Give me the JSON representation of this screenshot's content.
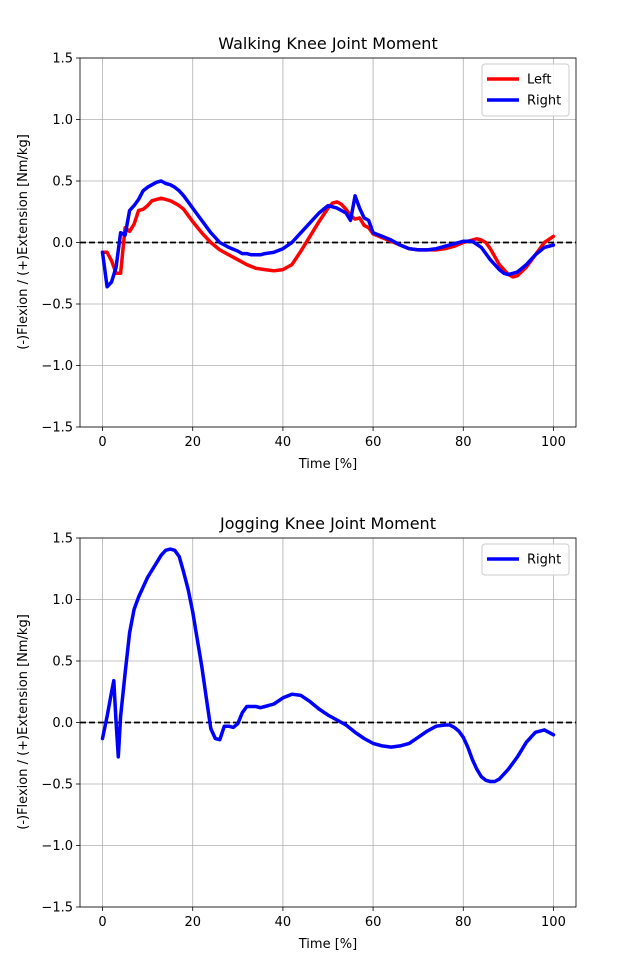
{
  "chart_data": [
    {
      "type": "line",
      "title": "Walking Knee Joint Moment",
      "xlabel": "Time [%]",
      "ylabel": "(-)Flexion / (+)Extension [Nm/kg]",
      "xlim": [
        -5,
        105
      ],
      "ylim": [
        -1.5,
        1.5
      ],
      "xticks": [
        0,
        20,
        40,
        60,
        80,
        100
      ],
      "yticks": [
        -1.5,
        -1.0,
        -0.5,
        0.0,
        0.5,
        1.0,
        1.5
      ],
      "ytick_labels": [
        "−1.5",
        "−1.0",
        "−0.5",
        "0.0",
        "0.5",
        "1.0",
        "1.5"
      ],
      "grid": true,
      "legend": "top-right",
      "zero_line": true,
      "series": [
        {
          "name": "Left",
          "color": "#ff0000",
          "x": [
            0,
            1,
            2,
            3,
            4,
            5,
            6,
            7,
            8,
            9,
            10,
            11,
            12,
            13,
            14,
            15,
            16,
            17,
            18,
            20,
            22,
            24,
            26,
            28,
            30,
            32,
            34,
            36,
            38,
            40,
            42,
            44,
            46,
            48,
            50,
            51,
            52,
            53,
            54,
            55,
            56,
            57,
            58,
            59,
            60,
            62,
            64,
            66,
            68,
            70,
            72,
            74,
            76,
            78,
            80,
            82,
            83,
            84,
            85,
            86,
            88,
            90,
            91,
            92,
            94,
            96,
            98,
            100
          ],
          "y": [
            -0.08,
            -0.08,
            -0.15,
            -0.25,
            -0.25,
            0.12,
            0.09,
            0.15,
            0.26,
            0.27,
            0.3,
            0.34,
            0.35,
            0.36,
            0.35,
            0.34,
            0.32,
            0.3,
            0.27,
            0.17,
            0.08,
            0.0,
            -0.06,
            -0.1,
            -0.14,
            -0.18,
            -0.21,
            -0.22,
            -0.23,
            -0.22,
            -0.18,
            -0.07,
            0.05,
            0.17,
            0.28,
            0.32,
            0.33,
            0.31,
            0.27,
            0.22,
            0.19,
            0.2,
            0.14,
            0.12,
            0.07,
            0.04,
            0.01,
            -0.02,
            -0.05,
            -0.06,
            -0.06,
            -0.06,
            -0.05,
            -0.03,
            0.0,
            0.02,
            0.03,
            0.02,
            0.0,
            -0.05,
            -0.18,
            -0.26,
            -0.28,
            -0.27,
            -0.2,
            -0.1,
            0.0,
            0.05
          ]
        },
        {
          "name": "Right",
          "color": "#0000ff",
          "x": [
            0,
            1,
            2,
            3,
            4,
            5,
            6,
            7,
            8,
            9,
            10,
            11,
            12,
            13,
            14,
            15,
            16,
            17,
            18,
            20,
            22,
            24,
            26,
            28,
            30,
            31,
            32,
            33,
            34,
            35,
            36,
            38,
            40,
            42,
            44,
            46,
            48,
            50,
            52,
            54,
            55,
            56,
            57,
            58,
            59,
            60,
            62,
            64,
            66,
            68,
            70,
            72,
            74,
            76,
            78,
            80,
            82,
            84,
            86,
            88,
            89,
            90,
            91,
            92,
            94,
            96,
            98,
            100
          ],
          "y": [
            -0.08,
            -0.36,
            -0.32,
            -0.2,
            0.08,
            0.06,
            0.26,
            0.3,
            0.35,
            0.42,
            0.45,
            0.47,
            0.49,
            0.5,
            0.48,
            0.47,
            0.45,
            0.42,
            0.38,
            0.28,
            0.18,
            0.08,
            0.0,
            -0.04,
            -0.07,
            -0.09,
            -0.09,
            -0.1,
            -0.1,
            -0.1,
            -0.09,
            -0.08,
            -0.05,
            0.0,
            0.08,
            0.16,
            0.24,
            0.3,
            0.28,
            0.24,
            0.18,
            0.38,
            0.28,
            0.2,
            0.18,
            0.08,
            0.05,
            0.02,
            -0.02,
            -0.05,
            -0.06,
            -0.06,
            -0.05,
            -0.03,
            -0.01,
            0.01,
            0.01,
            -0.04,
            -0.14,
            -0.22,
            -0.25,
            -0.26,
            -0.25,
            -0.24,
            -0.18,
            -0.1,
            -0.04,
            -0.02
          ]
        }
      ]
    },
    {
      "type": "line",
      "title": "Jogging Knee Joint Moment",
      "xlabel": "Time [%]",
      "ylabel": "(-)Flexion / (+)Extension [Nm/kg]",
      "xlim": [
        -5,
        105
      ],
      "ylim": [
        -1.5,
        1.5
      ],
      "xticks": [
        0,
        20,
        40,
        60,
        80,
        100
      ],
      "yticks": [
        -1.5,
        -1.0,
        -0.5,
        0.0,
        0.5,
        1.0,
        1.5
      ],
      "ytick_labels": [
        "−1.5",
        "−1.0",
        "−0.5",
        "0.0",
        "0.5",
        "1.0",
        "1.5"
      ],
      "grid": true,
      "legend": "top-right",
      "zero_line": true,
      "series": [
        {
          "name": "Right",
          "color": "#0000ff",
          "x": [
            0,
            1,
            2,
            2.5,
            3,
            3.5,
            4,
            5,
            6,
            7,
            8,
            9,
            10,
            11,
            12,
            13,
            14,
            15,
            16,
            17,
            18,
            19,
            20,
            21,
            22,
            23,
            24,
            25,
            26,
            27,
            28,
            29,
            30,
            31,
            32,
            33,
            34,
            35,
            36,
            38,
            40,
            42,
            44,
            46,
            48,
            50,
            52,
            54,
            56,
            58,
            60,
            62,
            64,
            66,
            68,
            70,
            72,
            74,
            76,
            77,
            78,
            79,
            80,
            81,
            82,
            83,
            84,
            85,
            86,
            87,
            88,
            90,
            92,
            94,
            96,
            98,
            100
          ],
          "y": [
            -0.13,
            0.05,
            0.25,
            0.34,
            0.0,
            -0.28,
            0.05,
            0.4,
            0.73,
            0.92,
            1.02,
            1.1,
            1.18,
            1.24,
            1.3,
            1.36,
            1.4,
            1.41,
            1.4,
            1.35,
            1.22,
            1.08,
            0.9,
            0.68,
            0.46,
            0.2,
            -0.05,
            -0.13,
            -0.14,
            -0.03,
            -0.03,
            -0.04,
            -0.01,
            0.08,
            0.13,
            0.13,
            0.13,
            0.12,
            0.13,
            0.15,
            0.2,
            0.23,
            0.22,
            0.17,
            0.11,
            0.06,
            0.02,
            -0.02,
            -0.08,
            -0.13,
            -0.17,
            -0.19,
            -0.2,
            -0.19,
            -0.17,
            -0.12,
            -0.07,
            -0.03,
            -0.02,
            -0.02,
            -0.04,
            -0.07,
            -0.12,
            -0.2,
            -0.3,
            -0.38,
            -0.44,
            -0.47,
            -0.48,
            -0.48,
            -0.46,
            -0.38,
            -0.28,
            -0.16,
            -0.08,
            -0.06,
            -0.1
          ]
        }
      ]
    }
  ]
}
